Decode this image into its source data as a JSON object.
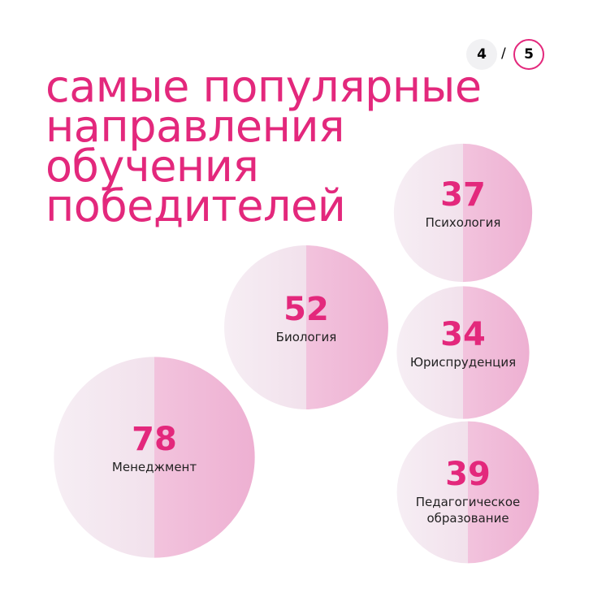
{
  "pager": {
    "current": 4,
    "separator": "/",
    "total": 5
  },
  "chart_data": {
    "type": "bubble",
    "title": "самые популярные\nнаправления\nобучения\nпобедителей",
    "categories": [
      "Менеджмент",
      "Биология",
      "Психология",
      "Юриспруденция",
      "Педагогическое образование"
    ],
    "values": [
      78,
      52,
      37,
      34,
      39
    ],
    "color": "#e3287c"
  }
}
